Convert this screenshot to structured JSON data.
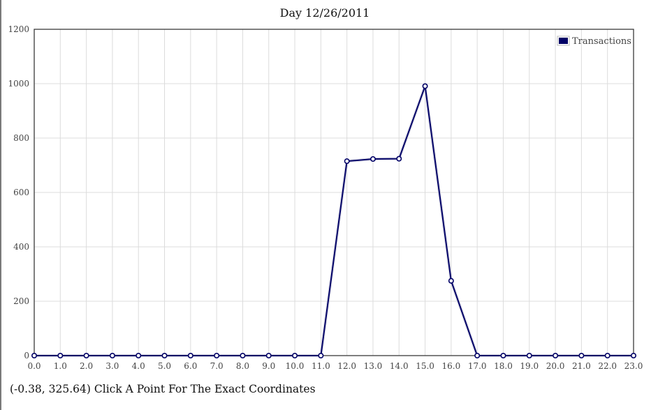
{
  "chart_data": {
    "type": "line",
    "title": "Day 12/26/2011",
    "xlabel": "",
    "ylabel": "",
    "x": [
      0,
      1,
      2,
      3,
      4,
      5,
      6,
      7,
      8,
      9,
      10,
      11,
      12,
      13,
      14,
      15,
      16,
      17,
      18,
      19,
      20,
      21,
      22,
      23
    ],
    "x_tick_labels": [
      "0.0",
      "1.0",
      "2.0",
      "3.0",
      "4.0",
      "5.0",
      "6.0",
      "7.0",
      "8.0",
      "9.0",
      "10.0",
      "11.0",
      "12.0",
      "13.0",
      "14.0",
      "15.0",
      "16.0",
      "17.0",
      "18.0",
      "19.0",
      "20.0",
      "21.0",
      "22.0",
      "23.0"
    ],
    "y_ticks": [
      0,
      200,
      400,
      600,
      800,
      1000,
      1200
    ],
    "xlim": [
      0,
      23
    ],
    "ylim": [
      0,
      1200
    ],
    "grid": true,
    "legend_position": "top-right",
    "series": [
      {
        "name": "Transactions",
        "color": "#000066",
        "values": [
          0,
          0,
          0,
          0,
          0,
          0,
          0,
          0,
          0,
          0,
          0,
          0,
          715,
          723,
          724,
          991,
          275,
          0,
          0,
          0,
          0,
          0,
          0,
          0
        ]
      }
    ]
  },
  "status": {
    "coordinates": "(-0.38, 325.64)",
    "hint": "Click A Point For The Exact Coordinates"
  }
}
